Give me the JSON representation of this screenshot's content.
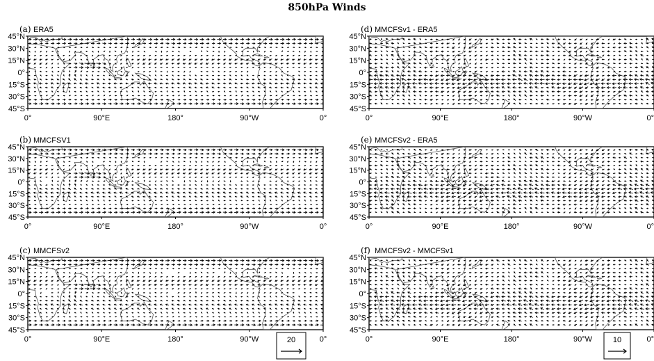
{
  "title": "850hPa Winds",
  "chart_data": [
    {
      "type": "vector-field",
      "label": "(a)",
      "title": "ERA5",
      "xlim": [
        0,
        360
      ],
      "ylim": [
        -45,
        45
      ],
      "x_ticks": [
        "0°",
        "90°E",
        "180°",
        "90°W",
        "0°"
      ],
      "y_ticks": [
        "45°N",
        "30°N",
        "15°N",
        "0°",
        "15°S",
        "30°S",
        "45°S"
      ],
      "reference_vector": null
    },
    {
      "type": "vector-field",
      "label": "(b)",
      "title": "MMCFSV1",
      "xlim": [
        0,
        360
      ],
      "ylim": [
        -45,
        45
      ],
      "x_ticks": [
        "0°",
        "90°E",
        "180°",
        "90°W",
        "0°"
      ],
      "y_ticks": [
        "45°N",
        "30°N",
        "15°N",
        "0°",
        "15°S",
        "30°S",
        "45°S"
      ],
      "reference_vector": null
    },
    {
      "type": "vector-field",
      "label": "(c)",
      "title": "MMCFSv2",
      "xlim": [
        0,
        360
      ],
      "ylim": [
        -45,
        45
      ],
      "x_ticks": [
        "0°",
        "90°E",
        "180°",
        "90°W",
        "0°"
      ],
      "y_ticks": [
        "45°N",
        "30°N",
        "15°N",
        "0°",
        "15°S",
        "30°S",
        "45°S"
      ],
      "reference_vector": "20"
    },
    {
      "type": "vector-field",
      "label": "(d)",
      "title": "MMCFSv1 - ERA5",
      "xlim": [
        0,
        360
      ],
      "ylim": [
        -45,
        45
      ],
      "x_ticks": [
        "0°",
        "90°E",
        "180°",
        "90°W",
        "0°"
      ],
      "y_ticks": [
        "45°N",
        "30°N",
        "15°N",
        "0°",
        "15°S",
        "30°S",
        "45°S"
      ],
      "reference_vector": null
    },
    {
      "type": "vector-field",
      "label": "(e)",
      "title": "MMCFSv2 - ERA5",
      "xlim": [
        0,
        360
      ],
      "ylim": [
        -45,
        45
      ],
      "x_ticks": [
        "0°",
        "90°E",
        "180°",
        "90°W",
        "0°"
      ],
      "y_ticks": [
        "45°N",
        "30°N",
        "15°N",
        "0°",
        "15°S",
        "30°S",
        "45°S"
      ],
      "reference_vector": null
    },
    {
      "type": "vector-field",
      "label": "(f)",
      "title": "MMCFSv2 - MMCFSv1",
      "xlim": [
        0,
        360
      ],
      "ylim": [
        -45,
        45
      ],
      "x_ticks": [
        "0°",
        "90°E",
        "180°",
        "90°W",
        "0°"
      ],
      "y_ticks": [
        "45°N",
        "30°N",
        "15°N",
        "0°",
        "15°S",
        "30°S",
        "45°S"
      ],
      "reference_vector": "10"
    }
  ]
}
